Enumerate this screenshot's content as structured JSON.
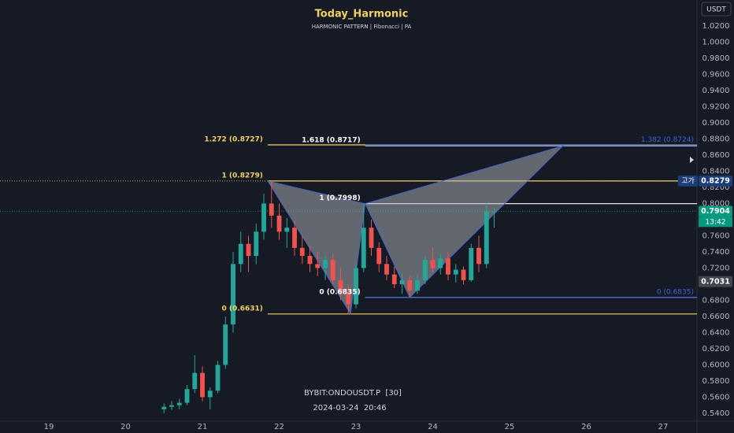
{
  "chart_data": {
    "type": "candlestick",
    "title": "Today_Harmonic",
    "subtitle": "HARMONIC PATTERN | Fibonacci | PA",
    "symbol": "BYBIT:ONDOUSDT.P  [30]",
    "datetime": "2024-03-24  20:46",
    "currency": "USDT",
    "up_color": "#26a69a",
    "down_color": "#ef5350",
    "xlim": [
      18.364,
      27.441
    ],
    "xticks": [
      19,
      20,
      21,
      22,
      23,
      24,
      25,
      26,
      27
    ],
    "ylim": [
      0.5302,
      1.0522
    ],
    "yticks": [
      {
        "value": 0.54,
        "label": "0.5400"
      },
      {
        "value": 0.56,
        "label": "0.5600"
      },
      {
        "value": 0.58,
        "label": "0.5800"
      },
      {
        "value": 0.6,
        "label": "0.6000"
      },
      {
        "value": 0.62,
        "label": "0.6200"
      },
      {
        "value": 0.64,
        "label": "0.6400"
      },
      {
        "value": 0.66,
        "label": "0.6600"
      },
      {
        "value": 0.68,
        "label": "0.6800"
      },
      {
        "value": 0.7,
        "label": "0.7000"
      },
      {
        "value": 0.72,
        "label": "0.7200"
      },
      {
        "value": 0.74,
        "label": "0.7400"
      },
      {
        "value": 0.76,
        "label": "0.7600"
      },
      {
        "value": 0.78,
        "label": "0.7800"
      },
      {
        "value": 0.8,
        "label": "0.8000"
      },
      {
        "value": 0.82,
        "label": "0.8200"
      },
      {
        "value": 0.84,
        "label": "0.8400"
      },
      {
        "value": 0.86,
        "label": "0.8600"
      },
      {
        "value": 0.88,
        "label": "0.8800"
      },
      {
        "value": 0.9,
        "label": "0.9000"
      },
      {
        "value": 0.92,
        "label": "0.9200"
      },
      {
        "value": 0.94,
        "label": "0.9400"
      },
      {
        "value": 0.96,
        "label": "0.9600"
      },
      {
        "value": 0.98,
        "label": "0.9800"
      },
      {
        "value": 1.0,
        "label": "1.0000"
      },
      {
        "value": 1.02,
        "label": "1.0200"
      }
    ],
    "grid": false,
    "x": [
      20.5,
      20.6,
      20.7,
      20.8,
      20.9,
      21.0,
      21.1,
      21.2,
      21.3,
      21.4,
      21.5,
      21.6,
      21.7,
      21.8,
      21.9,
      22.0,
      22.1,
      22.2,
      22.3,
      22.4,
      22.5,
      22.6,
      22.7,
      22.8,
      22.9,
      23.0,
      23.1,
      23.2,
      23.3,
      23.4,
      23.5,
      23.6,
      23.7,
      23.8,
      23.9,
      24.0,
      24.1,
      24.2,
      24.3,
      24.4,
      24.5,
      24.6,
      24.7,
      24.8
    ],
    "open": [
      0.545,
      0.548,
      0.55,
      0.553,
      0.57,
      0.59,
      0.56,
      0.568,
      0.6,
      0.65,
      0.725,
      0.75,
      0.735,
      0.765,
      0.8,
      0.785,
      0.765,
      0.77,
      0.745,
      0.735,
      0.725,
      0.72,
      0.73,
      0.705,
      0.69,
      0.675,
      0.72,
      0.77,
      0.745,
      0.725,
      0.712,
      0.7,
      0.705,
      0.692,
      0.705,
      0.73,
      0.72,
      0.732,
      0.712,
      0.718,
      0.705,
      0.745,
      0.725,
      0.79
    ],
    "high": [
      0.552,
      0.555,
      0.558,
      0.575,
      0.612,
      0.598,
      0.572,
      0.605,
      0.66,
      0.74,
      0.765,
      0.76,
      0.775,
      0.812,
      0.828,
      0.8,
      0.782,
      0.778,
      0.76,
      0.748,
      0.74,
      0.735,
      0.738,
      0.72,
      0.7,
      0.725,
      0.7998,
      0.78,
      0.752,
      0.735,
      0.722,
      0.712,
      0.71,
      0.712,
      0.735,
      0.745,
      0.738,
      0.74,
      0.725,
      0.722,
      0.75,
      0.76,
      0.8,
      0.795
    ],
    "low": [
      0.54,
      0.544,
      0.545,
      0.55,
      0.565,
      0.555,
      0.545,
      0.565,
      0.595,
      0.64,
      0.715,
      0.715,
      0.725,
      0.755,
      0.77,
      0.755,
      0.745,
      0.735,
      0.725,
      0.715,
      0.71,
      0.705,
      0.7,
      0.68,
      0.663,
      0.67,
      0.715,
      0.735,
      0.715,
      0.705,
      0.695,
      0.688,
      0.6835,
      0.688,
      0.7,
      0.715,
      0.712,
      0.705,
      0.702,
      0.7,
      0.703,
      0.715,
      0.72,
      0.77
    ],
    "close": [
      0.548,
      0.55,
      0.553,
      0.57,
      0.59,
      0.56,
      0.568,
      0.6,
      0.65,
      0.725,
      0.75,
      0.735,
      0.765,
      0.8,
      0.785,
      0.765,
      0.77,
      0.745,
      0.735,
      0.725,
      0.72,
      0.73,
      0.705,
      0.69,
      0.675,
      0.72,
      0.77,
      0.745,
      0.725,
      0.712,
      0.7,
      0.705,
      0.692,
      0.705,
      0.73,
      0.72,
      0.732,
      0.712,
      0.718,
      0.705,
      0.745,
      0.725,
      0.79,
      0.7904
    ],
    "pattern": {
      "color": "#b0b3bb",
      "x": [
        21.85,
        22.93,
        23.12,
        23.7,
        25.7
      ],
      "y": [
        0.8279,
        0.6631,
        0.7998,
        0.6835,
        0.8717
      ]
    },
    "fib_levels": [
      {
        "label": "1.272 (0.8727)",
        "value": 0.8727,
        "start": 21.85,
        "color": "#f0d060",
        "side": "left"
      },
      {
        "label": "1 (0.8279)",
        "value": 0.8279,
        "start": 21.85,
        "color": "#f0d060",
        "side": "left"
      },
      {
        "label": "0 (0.6631)",
        "value": 0.6631,
        "start": 21.85,
        "color": "#f0d060",
        "side": "left"
      },
      {
        "label": "1.618 (0.8717)",
        "value": 0.8717,
        "start": 23.12,
        "color": "#ffffff",
        "side": "left"
      },
      {
        "label": "1 (0.7998)",
        "value": 0.7998,
        "start": 23.12,
        "color": "#ffffff",
        "side": "left"
      },
      {
        "label": "0 (0.6835)",
        "value": 0.6835,
        "start": 23.12,
        "color": "#ffffff",
        "side": "left"
      },
      {
        "label": "1.382 (0.8724)",
        "value": 0.8724,
        "start": 23.12,
        "color": "#3d63d8",
        "side": "right"
      },
      {
        "label": "0 (0.6835)",
        "value": 0.6835,
        "start": 23.12,
        "color": "#3d63d8",
        "side": "right"
      }
    ],
    "price_labels": [
      {
        "value": 0.8279,
        "label": "0.8279",
        "tag": "고가",
        "color": "#1c3d7a",
        "dotted": true
      },
      {
        "value": 0.7904,
        "label": "0.7904",
        "tag": "13:42",
        "color": "#089981",
        "dotted": true
      },
      {
        "value": 0.7031,
        "label": "0.7031",
        "color": "#434651",
        "dotted": false
      }
    ]
  }
}
